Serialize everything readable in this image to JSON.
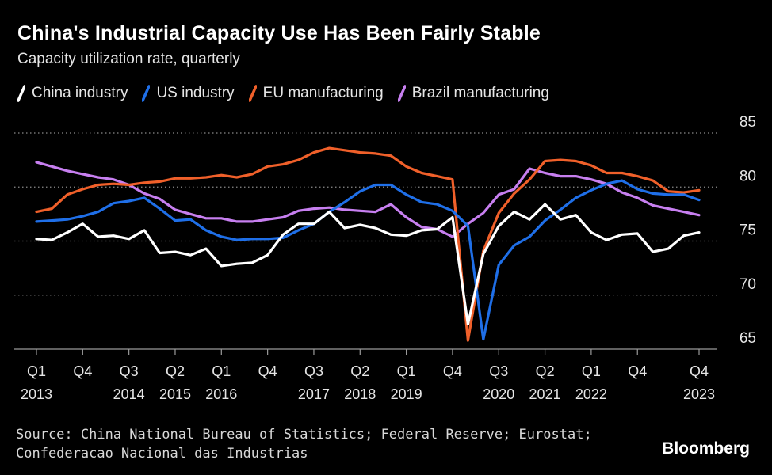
{
  "title": "China's Industrial Capacity Use Has Been Fairly Stable",
  "subtitle": "Capacity utilization rate, quarterly",
  "legend": [
    {
      "label": "China industry",
      "color": "#ffffff"
    },
    {
      "label": "US industry",
      "color": "#1f6fe8"
    },
    {
      "label": "EU manufacturing",
      "color": "#f0602a"
    },
    {
      "label": "Brazil manufacturing",
      "color": "#c77ff0"
    }
  ],
  "source_lines": [
    "Source: China National Bureau of Statistics; Federal Reserve; Eurostat;",
    "Confederacao Nacional das Industrias"
  ],
  "brand": "Bloomberg",
  "chart_data": {
    "type": "line",
    "title": "China's Industrial Capacity Use Has Been Fairly Stable",
    "subtitle": "Capacity utilization rate, quarterly",
    "ylim": [
      65,
      85
    ],
    "yticks": [
      65,
      70,
      75,
      80,
      85
    ],
    "x_range": [
      "2013 Q1",
      "2023 Q4"
    ],
    "x_ticks": [
      {
        "q": 0,
        "label": "Q1",
        "year": "2013"
      },
      {
        "q": 3,
        "label": "Q4",
        "year": ""
      },
      {
        "q": 6,
        "label": "Q3",
        "year": "2014"
      },
      {
        "q": 9,
        "label": "Q2",
        "year": "2015"
      },
      {
        "q": 12,
        "label": "Q1",
        "year": "2016"
      },
      {
        "q": 15,
        "label": "Q4",
        "year": ""
      },
      {
        "q": 18,
        "label": "Q3",
        "year": "2017"
      },
      {
        "q": 21,
        "label": "Q2",
        "year": "2018"
      },
      {
        "q": 24,
        "label": "Q1",
        "year": "2019"
      },
      {
        "q": 27,
        "label": "Q4",
        "year": ""
      },
      {
        "q": 30,
        "label": "Q3",
        "year": "2020"
      },
      {
        "q": 33,
        "label": "Q2",
        "year": "2021"
      },
      {
        "q": 36,
        "label": "Q1",
        "year": "2022"
      },
      {
        "q": 39,
        "label": "Q4",
        "year": ""
      },
      {
        "q": 43,
        "label": "Q4",
        "year": "2023"
      }
    ],
    "series": [
      {
        "name": "China industry",
        "color": "#ffffff",
        "values": [
          75.2,
          75.1,
          75.8,
          76.6,
          75.4,
          75.5,
          75.2,
          76.0,
          73.9,
          74.0,
          73.7,
          74.3,
          72.7,
          72.9,
          73.0,
          73.7,
          75.6,
          76.6,
          76.6,
          77.7,
          76.2,
          76.5,
          76.2,
          75.6,
          75.5,
          76.0,
          76.1,
          77.2,
          67.3,
          73.8,
          76.4,
          77.7,
          77.0,
          78.4,
          77.0,
          77.4,
          75.8,
          75.1,
          75.6,
          75.7,
          74.0,
          74.3,
          75.5,
          75.8
        ]
      },
      {
        "name": "US industry",
        "color": "#1f6fe8",
        "values": [
          76.8,
          76.9,
          77.0,
          77.3,
          77.7,
          78.5,
          78.7,
          79.0,
          78.0,
          76.9,
          77.0,
          76.0,
          75.4,
          75.1,
          75.2,
          75.2,
          75.3,
          76.0,
          76.6,
          77.7,
          78.6,
          79.6,
          80.2,
          80.2,
          79.3,
          78.6,
          78.4,
          77.8,
          76.4,
          65.9,
          72.8,
          74.6,
          75.4,
          76.9,
          77.9,
          79.0,
          79.7,
          80.3,
          80.6,
          79.8,
          79.4,
          79.3,
          79.3,
          78.8
        ]
      },
      {
        "name": "EU manufacturing",
        "color": "#f0602a",
        "values": [
          77.7,
          78.0,
          79.3,
          79.8,
          80.2,
          80.3,
          80.2,
          80.4,
          80.5,
          80.8,
          80.8,
          80.9,
          81.1,
          80.9,
          81.2,
          81.9,
          82.1,
          82.5,
          83.2,
          83.6,
          83.4,
          83.2,
          83.1,
          82.9,
          81.9,
          81.3,
          81.0,
          80.7,
          65.8,
          74.1,
          77.6,
          79.4,
          80.7,
          82.4,
          82.5,
          82.4,
          82.0,
          81.3,
          81.3,
          81.0,
          80.6,
          79.6,
          79.5,
          79.7
        ]
      },
      {
        "name": "Brazil manufacturing",
        "color": "#c77ff0",
        "values": [
          82.3,
          81.9,
          81.5,
          81.2,
          80.9,
          80.7,
          80.2,
          79.4,
          78.9,
          77.9,
          77.5,
          77.1,
          77.1,
          76.8,
          76.8,
          77.0,
          77.2,
          77.8,
          78.0,
          78.1,
          77.9,
          77.8,
          77.7,
          78.4,
          77.2,
          76.3,
          76.1,
          75.4,
          76.6,
          77.6,
          79.3,
          79.8,
          81.7,
          81.3,
          81.0,
          81.0,
          80.7,
          80.3,
          79.5,
          79.0,
          78.3,
          78.0,
          77.7,
          77.4
        ]
      }
    ]
  }
}
